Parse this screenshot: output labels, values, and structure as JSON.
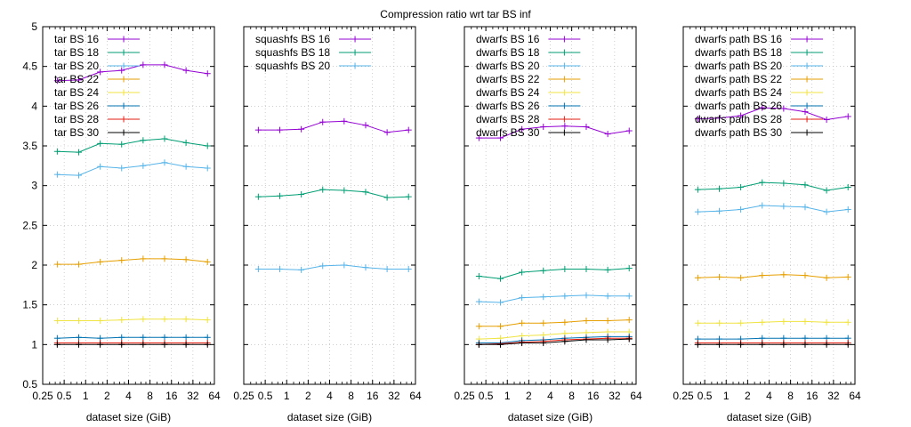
{
  "figure_title": "Compression ratio wrt tar BS inf",
  "chart_data": [
    {
      "type": "line",
      "xlabel": "dataset size (GiB)",
      "x_scale": "log2",
      "xlim": [
        0.25,
        64
      ],
      "ylim": [
        0.5,
        5
      ],
      "y_ticks": [
        "0.5",
        "1",
        "1.5",
        "2",
        "2.5",
        "3",
        "3.5",
        "4",
        "4.5",
        "5"
      ],
      "x_ticks": [
        "0.25",
        "0.5",
        "1",
        "2",
        "4",
        "8",
        "16",
        "32",
        "64"
      ],
      "grid": true,
      "legend_position": "top-left",
      "x": [
        0.4,
        0.8,
        1.6,
        3.2,
        6.4,
        12.8,
        25.6,
        51.2
      ],
      "series": [
        {
          "name": "tar BS 16",
          "color": "#9400d3",
          "values": [
            4.32,
            4.33,
            4.43,
            4.45,
            4.52,
            4.52,
            4.45,
            4.41
          ]
        },
        {
          "name": "tar BS 18",
          "color": "#009e73",
          "values": [
            3.43,
            3.42,
            3.53,
            3.52,
            3.57,
            3.59,
            3.54,
            3.5
          ]
        },
        {
          "name": "tar BS 20",
          "color": "#56b4e9",
          "values": [
            3.14,
            3.13,
            3.24,
            3.22,
            3.25,
            3.29,
            3.24,
            3.22
          ]
        },
        {
          "name": "tar BS 22",
          "color": "#e69f00",
          "values": [
            2.01,
            2.01,
            2.04,
            2.06,
            2.08,
            2.08,
            2.07,
            2.04
          ]
        },
        {
          "name": "tar BS 24",
          "color": "#f0e442",
          "values": [
            1.3,
            1.3,
            1.3,
            1.31,
            1.32,
            1.32,
            1.32,
            1.31
          ]
        },
        {
          "name": "tar BS 26",
          "color": "#0072b2",
          "values": [
            1.08,
            1.09,
            1.08,
            1.09,
            1.09,
            1.09,
            1.09,
            1.09
          ]
        },
        {
          "name": "tar BS 28",
          "color": "#e51e10",
          "values": [
            1.02,
            1.02,
            1.02,
            1.02,
            1.02,
            1.02,
            1.02,
            1.02
          ]
        },
        {
          "name": "tar BS 30",
          "color": "#000000",
          "values": [
            1.0,
            1.0,
            1.0,
            1.0,
            1.0,
            1.0,
            1.0,
            1.0
          ]
        }
      ]
    },
    {
      "type": "line",
      "xlabel": "dataset size (GiB)",
      "x_scale": "log2",
      "xlim": [
        0.25,
        64
      ],
      "ylim": [
        0.5,
        5
      ],
      "y_ticks": [],
      "x_ticks": [
        "0.25",
        "0.5",
        "1",
        "2",
        "4",
        "8",
        "16",
        "32",
        "64"
      ],
      "grid": true,
      "legend_position": "top-left",
      "x": [
        0.4,
        0.8,
        1.6,
        3.2,
        6.4,
        12.8,
        25.6,
        51.2
      ],
      "series": [
        {
          "name": "squashfs BS 16",
          "color": "#9400d3",
          "values": [
            3.7,
            3.7,
            3.71,
            3.8,
            3.81,
            3.76,
            3.67,
            3.7
          ]
        },
        {
          "name": "squashfs BS 18",
          "color": "#009e73",
          "values": [
            2.86,
            2.87,
            2.89,
            2.95,
            2.94,
            2.92,
            2.85,
            2.86
          ]
        },
        {
          "name": "squashfs BS 20",
          "color": "#56b4e9",
          "values": [
            1.95,
            1.95,
            1.94,
            1.99,
            2.0,
            1.97,
            1.95,
            1.95
          ]
        }
      ]
    },
    {
      "type": "line",
      "xlabel": "dataset size (GiB)",
      "x_scale": "log2",
      "xlim": [
        0.25,
        64
      ],
      "ylim": [
        0.5,
        5
      ],
      "y_ticks": [],
      "x_ticks": [
        "0.25",
        "0.5",
        "1",
        "2",
        "4",
        "8",
        "16",
        "32",
        "64"
      ],
      "grid": true,
      "legend_position": "top-left",
      "x": [
        0.4,
        0.8,
        1.6,
        3.2,
        6.4,
        12.8,
        25.6,
        51.2
      ],
      "series": [
        {
          "name": "dwarfs BS 16",
          "color": "#9400d3",
          "values": [
            3.6,
            3.6,
            3.71,
            3.74,
            3.75,
            3.74,
            3.65,
            3.69
          ]
        },
        {
          "name": "dwarfs BS 18",
          "color": "#009e73",
          "values": [
            1.86,
            1.83,
            1.91,
            1.93,
            1.95,
            1.95,
            1.94,
            1.96
          ]
        },
        {
          "name": "dwarfs BS 20",
          "color": "#56b4e9",
          "values": [
            1.54,
            1.53,
            1.59,
            1.6,
            1.61,
            1.62,
            1.61,
            1.61
          ]
        },
        {
          "name": "dwarfs BS 22",
          "color": "#e69f00",
          "values": [
            1.23,
            1.23,
            1.27,
            1.27,
            1.28,
            1.3,
            1.3,
            1.31
          ]
        },
        {
          "name": "dwarfs BS 24",
          "color": "#f0e442",
          "values": [
            1.07,
            1.08,
            1.11,
            1.12,
            1.14,
            1.15,
            1.16,
            1.16
          ]
        },
        {
          "name": "dwarfs BS 26",
          "color": "#0072b2",
          "values": [
            1.02,
            1.02,
            1.05,
            1.06,
            1.08,
            1.09,
            1.1,
            1.1
          ]
        },
        {
          "name": "dwarfs BS 28",
          "color": "#e51e10",
          "values": [
            1.0,
            1.01,
            1.03,
            1.04,
            1.06,
            1.07,
            1.08,
            1.08
          ]
        },
        {
          "name": "dwarfs BS 30",
          "color": "#000000",
          "values": [
            1.0,
            1.0,
            1.02,
            1.02,
            1.04,
            1.06,
            1.06,
            1.07
          ]
        }
      ]
    },
    {
      "type": "line",
      "xlabel": "dataset size (GiB)",
      "x_scale": "log2",
      "xlim": [
        0.25,
        64
      ],
      "ylim": [
        0.5,
        5
      ],
      "y_ticks": [],
      "x_ticks": [
        "0.25",
        "0.5",
        "1",
        "2",
        "4",
        "8",
        "16",
        "32",
        "64"
      ],
      "grid": true,
      "legend_position": "top-left",
      "x": [
        0.4,
        0.8,
        1.6,
        3.2,
        6.4,
        12.8,
        25.6,
        51.2
      ],
      "series": [
        {
          "name": "dwarfs path BS 16",
          "color": "#9400d3",
          "values": [
            3.84,
            3.85,
            3.88,
            3.98,
            3.97,
            3.93,
            3.83,
            3.87
          ]
        },
        {
          "name": "dwarfs path BS 18",
          "color": "#009e73",
          "values": [
            2.95,
            2.96,
            2.98,
            3.04,
            3.03,
            3.01,
            2.94,
            2.98
          ]
        },
        {
          "name": "dwarfs path BS 20",
          "color": "#56b4e9",
          "values": [
            2.67,
            2.68,
            2.7,
            2.75,
            2.74,
            2.73,
            2.67,
            2.7
          ]
        },
        {
          "name": "dwarfs path BS 22",
          "color": "#e69f00",
          "values": [
            1.84,
            1.85,
            1.84,
            1.87,
            1.88,
            1.87,
            1.84,
            1.85
          ]
        },
        {
          "name": "dwarfs path BS 24",
          "color": "#f0e442",
          "values": [
            1.27,
            1.27,
            1.27,
            1.28,
            1.29,
            1.29,
            1.28,
            1.28
          ]
        },
        {
          "name": "dwarfs path BS 26",
          "color": "#0072b2",
          "values": [
            1.07,
            1.07,
            1.07,
            1.08,
            1.08,
            1.08,
            1.08,
            1.08
          ]
        },
        {
          "name": "dwarfs path BS 28",
          "color": "#e51e10",
          "values": [
            1.02,
            1.02,
            1.02,
            1.02,
            1.02,
            1.02,
            1.02,
            1.02
          ]
        },
        {
          "name": "dwarfs path BS 30",
          "color": "#000000",
          "values": [
            1.0,
            1.0,
            1.0,
            1.0,
            1.0,
            1.0,
            1.0,
            1.0
          ]
        }
      ]
    }
  ]
}
